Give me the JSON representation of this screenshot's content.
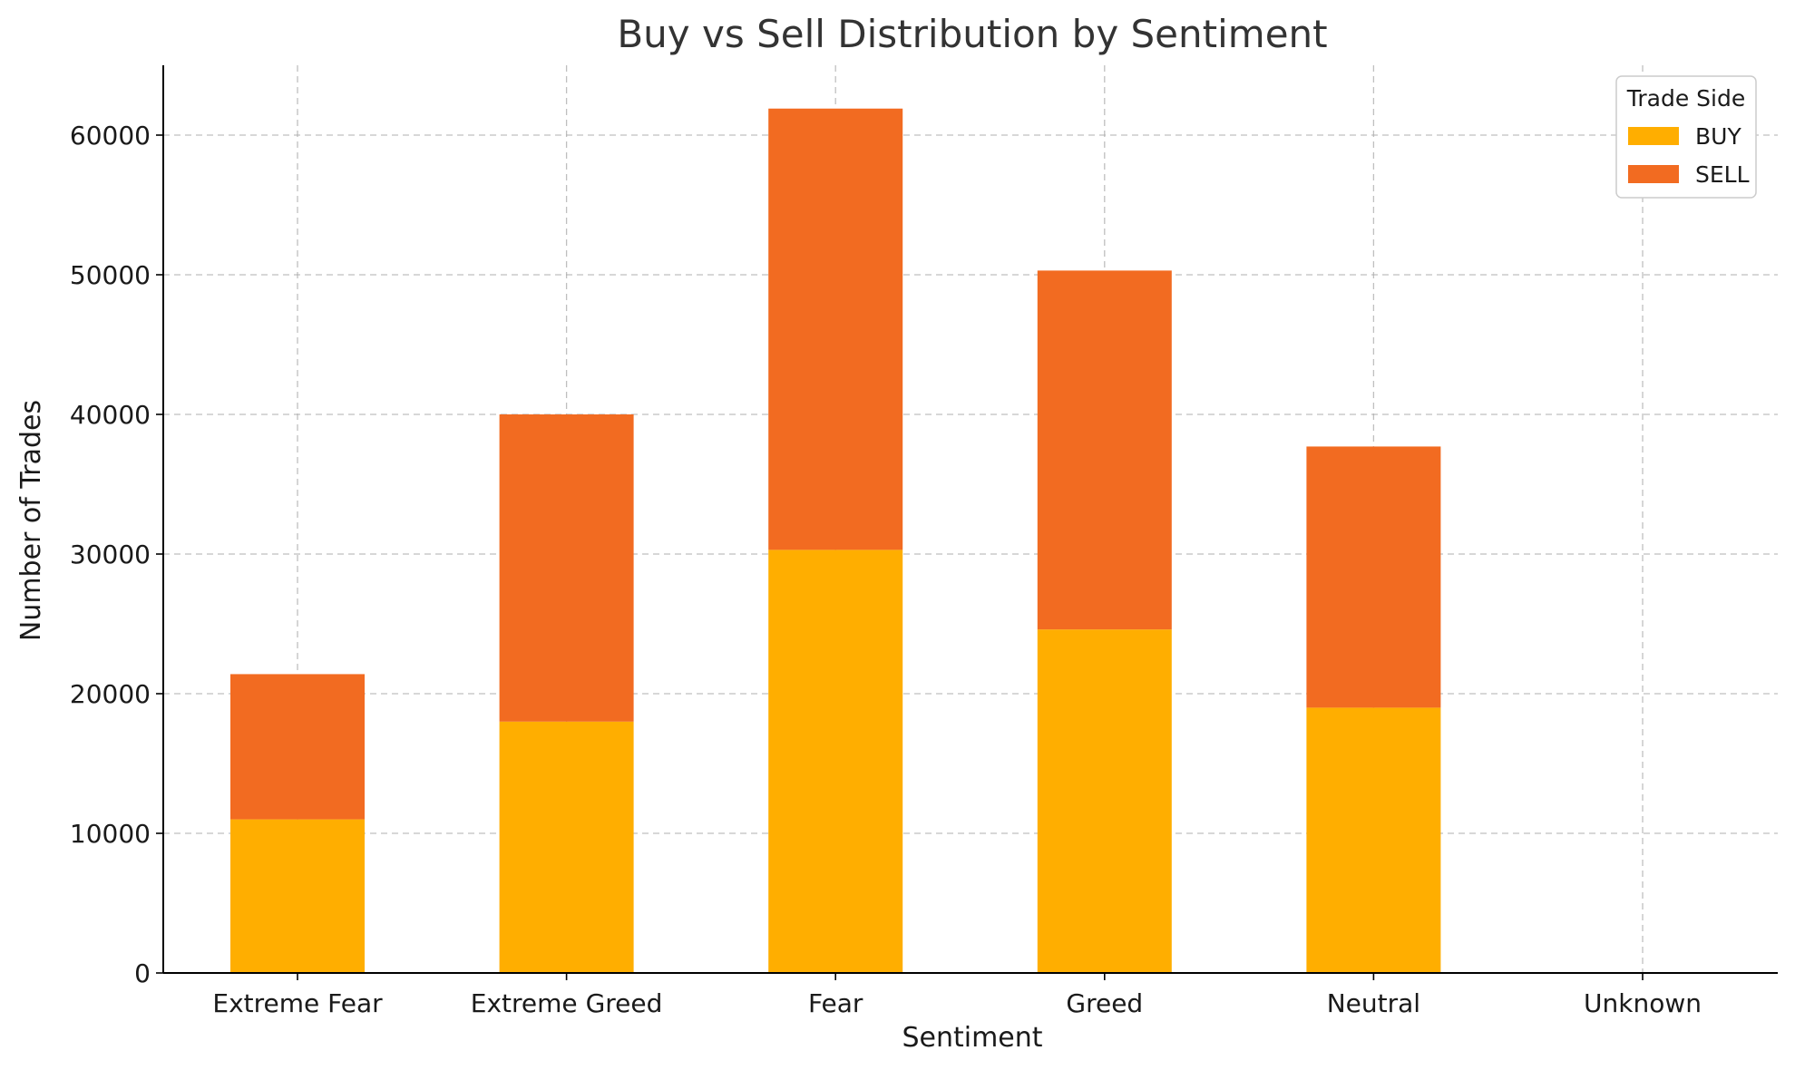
{
  "chart_data": {
    "type": "bar",
    "stacked": true,
    "title": "Buy vs Sell Distribution by Sentiment",
    "xlabel": "Sentiment",
    "ylabel": "Number of Trades",
    "categories": [
      "Extreme Fear",
      "Extreme Greed",
      "Fear",
      "Greed",
      "Neutral",
      "Unknown"
    ],
    "series": [
      {
        "name": "BUY",
        "color": "#ffae00",
        "values": [
          11000,
          18000,
          30300,
          24600,
          19000,
          0
        ]
      },
      {
        "name": "SELL",
        "color": "#f26b21",
        "values": [
          10400,
          22000,
          31600,
          25700,
          18700,
          0
        ]
      }
    ],
    "ylim": [
      0,
      65000
    ],
    "yticks": [
      0,
      10000,
      20000,
      30000,
      40000,
      50000,
      60000
    ],
    "grid": true,
    "legend": {
      "title": "Trade Side",
      "position": "top-right"
    }
  }
}
